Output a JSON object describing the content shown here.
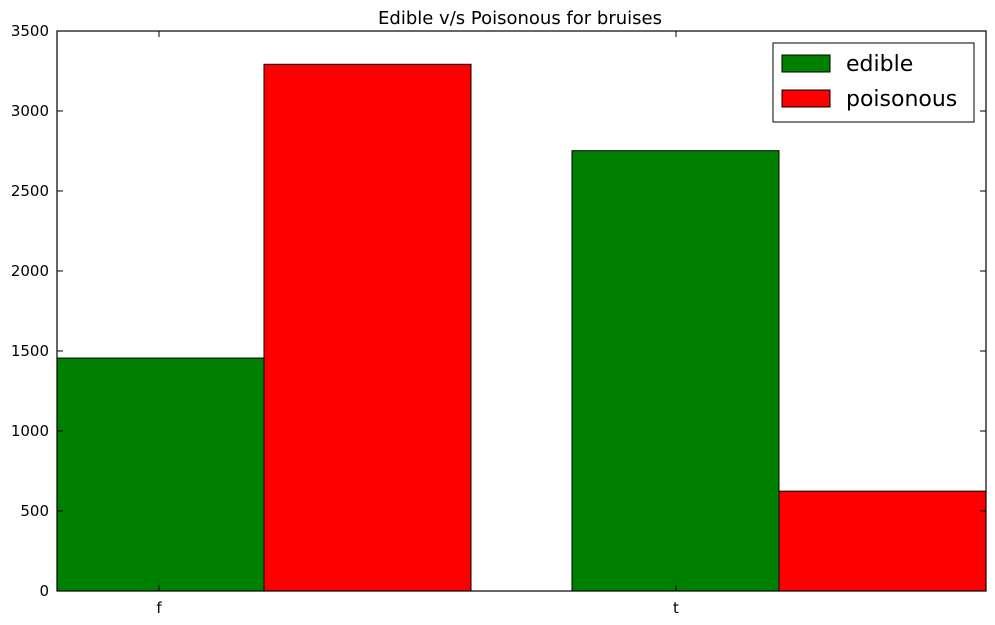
{
  "chart_data": {
    "type": "bar",
    "title": "Edible v/s Poisonous for bruises",
    "xlabel": "",
    "ylabel": "",
    "categories": [
      "f",
      "t"
    ],
    "series": [
      {
        "name": "edible",
        "values": [
          1456,
          2752
        ],
        "color": "#008000"
      },
      {
        "name": "poisonous",
        "values": [
          3292,
          624
        ],
        "color": "#ff0000"
      }
    ],
    "ylim": [
      0,
      3500
    ],
    "yticks": [
      0,
      500,
      1000,
      1500,
      2000,
      2500,
      3000,
      3500
    ],
    "grid": false,
    "legend": "top-right"
  }
}
